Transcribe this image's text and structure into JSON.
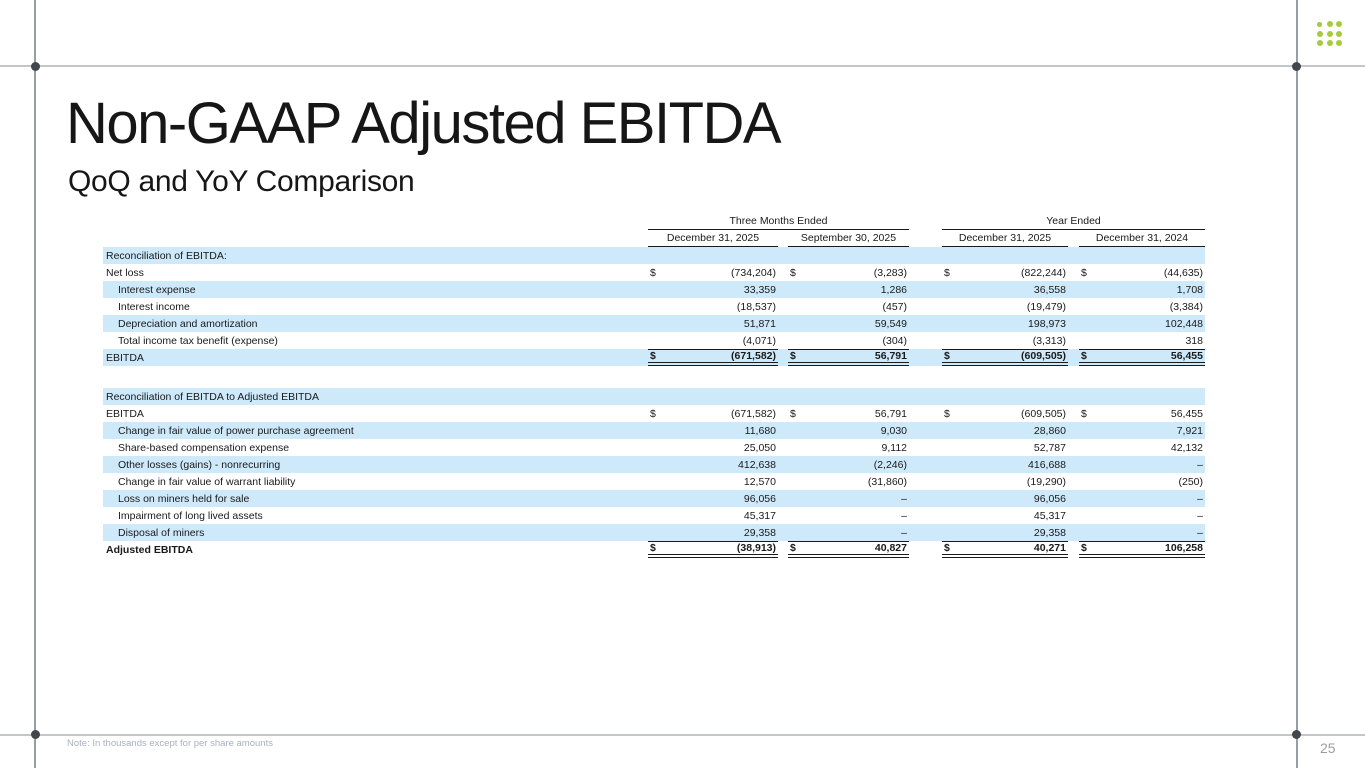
{
  "slide": {
    "title": "Non-GAAP Adjusted EBITDA",
    "subtitle": "QoQ and YoY Comparison",
    "note": "Note: In thousands except for per share amounts",
    "page_number": "25"
  },
  "logo": {
    "description": "dot-grid-logo",
    "color": "#a6cb3d"
  },
  "colors": {
    "row_highlight": "#cde9fa",
    "rule": "#1a1a1a",
    "frame_line_horizontal": "#c2c6c9",
    "frame_line_vertical": "#979da2",
    "frame_dot": "#41474c",
    "note_text": "#a7b1c2",
    "page_text": "#999fa4"
  },
  "table": {
    "group_headers": [
      {
        "label": "Three Months Ended"
      },
      {
        "label": "Year Ended"
      }
    ],
    "column_headers": [
      "December 31, 2025",
      "September 30, 2025",
      "December 31, 2025",
      "December 31, 2024"
    ],
    "sections": [
      {
        "rows": [
          {
            "label": "Reconciliation of EBITDA:",
            "section_header": true
          },
          {
            "label": "Net loss",
            "dollar": true,
            "values": [
              "(734,204)",
              "(3,283)",
              "(822,244)",
              "(44,635)"
            ]
          },
          {
            "label": "Interest expense",
            "indent": true,
            "values": [
              "33,359",
              "1,286",
              "36,558",
              "1,708"
            ]
          },
          {
            "label": "Interest income",
            "indent": true,
            "values": [
              "(18,537)",
              "(457)",
              "(19,479)",
              "(3,384)"
            ]
          },
          {
            "label": "Depreciation and amortization",
            "indent": true,
            "values": [
              "51,871",
              "59,549",
              "198,973",
              "102,448"
            ]
          },
          {
            "label": "Total income tax benefit (expense)",
            "indent": true,
            "values": [
              "(4,071)",
              "(304)",
              "(3,313)",
              "318"
            ]
          },
          {
            "label": "EBITDA",
            "dollar": true,
            "total": true,
            "values": [
              "(671,582)",
              "56,791",
              "(609,505)",
              "56,455"
            ]
          }
        ]
      },
      {
        "rows": [
          {
            "label": "Reconciliation of EBITDA to Adjusted EBITDA",
            "section_header": true
          },
          {
            "label": "EBITDA",
            "dollar": true,
            "values": [
              "(671,582)",
              "56,791",
              "(609,505)",
              "56,455"
            ]
          },
          {
            "label": "Change in fair value of power purchase agreement",
            "indent": true,
            "values": [
              "11,680",
              "9,030",
              "28,860",
              "7,921"
            ]
          },
          {
            "label": "Share-based compensation expense",
            "indent": true,
            "values": [
              "25,050",
              "9,112",
              "52,787",
              "42,132"
            ]
          },
          {
            "label": "Other losses (gains) - nonrecurring",
            "indent": true,
            "values": [
              "412,638",
              "(2,246)",
              "416,688",
              "–"
            ]
          },
          {
            "label": "Change in fair value of warrant liability",
            "indent": true,
            "values": [
              "12,570",
              "(31,860)",
              "(19,290)",
              "(250)"
            ]
          },
          {
            "label": "Loss on miners held for sale",
            "indent": true,
            "values": [
              "96,056",
              "–",
              "96,056",
              "–"
            ]
          },
          {
            "label": "Impairment of long lived assets",
            "indent": true,
            "values": [
              "45,317",
              "–",
              "45,317",
              "–"
            ]
          },
          {
            "label": "Disposal of miners",
            "indent": true,
            "values": [
              "29,358",
              "–",
              "29,358",
              "–"
            ]
          },
          {
            "label": "Adjusted EBITDA",
            "dollar": true,
            "total": true,
            "bold_label": true,
            "values": [
              "(38,913)",
              "40,827",
              "40,271",
              "106,258"
            ]
          }
        ]
      }
    ]
  }
}
